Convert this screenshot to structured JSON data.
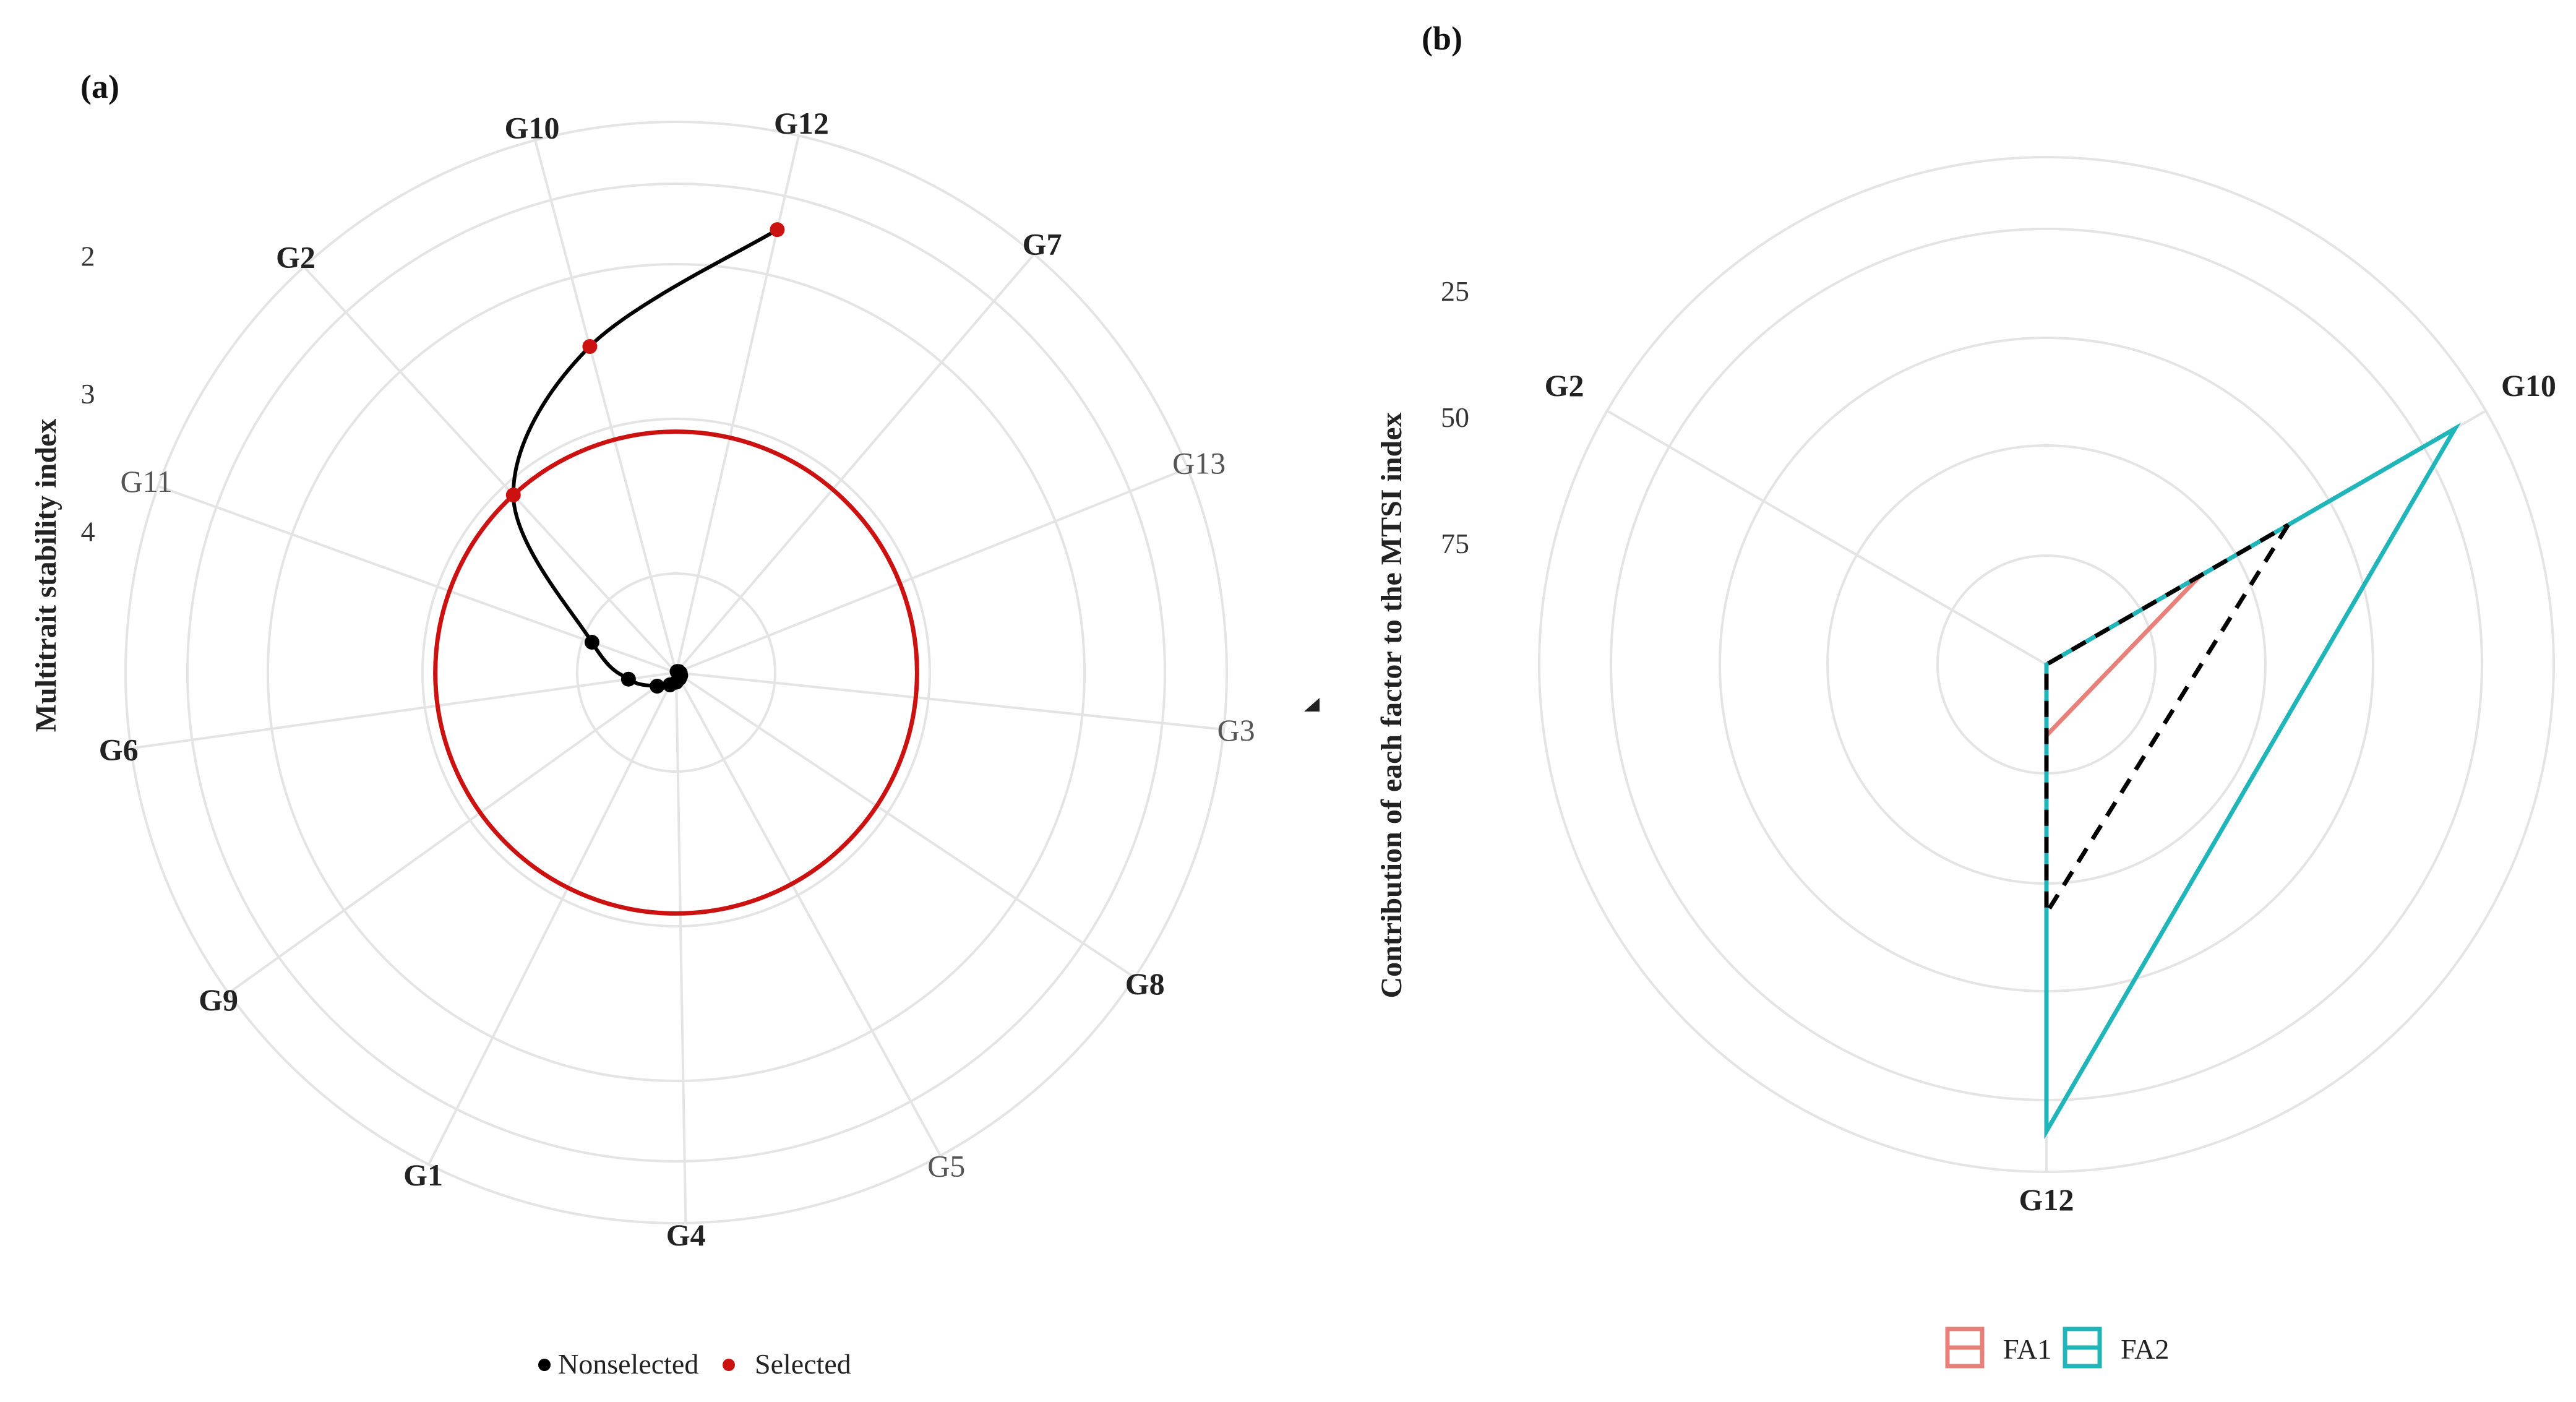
{
  "chart_data": [
    {
      "panel": "(a)",
      "type": "radar",
      "ylabel": "Multitrait stability index",
      "r_ticks": [
        "2",
        "3",
        "4"
      ],
      "r_tick_values": [
        2,
        3,
        4
      ],
      "r_axis": "reversed",
      "categories": [
        "G12",
        "G7",
        "G13",
        "G3",
        "G8",
        "G5",
        "G4",
        "G1",
        "G9",
        "G6",
        "G11",
        "G2",
        "G10"
      ],
      "light_categories": [
        "G13",
        "G3",
        "G5",
        "G11"
      ],
      "points": [
        {
          "genotype": "G12",
          "mtsi": 1.7,
          "group": "Selected"
        },
        {
          "genotype": "G10",
          "mtsi": 2.55,
          "group": "Selected"
        },
        {
          "genotype": "G2",
          "mtsi": 3.25,
          "group": "Selected"
        },
        {
          "genotype": "G11",
          "mtsi": 4.35,
          "group": "Nonselected"
        },
        {
          "genotype": "G6",
          "mtsi": 4.65,
          "group": "Nonselected"
        },
        {
          "genotype": "G9",
          "mtsi": 4.83,
          "group": "Nonselected"
        },
        {
          "genotype": "G1",
          "mtsi": 4.9,
          "group": "Nonselected"
        },
        {
          "genotype": "G4",
          "mtsi": 4.93,
          "group": "Nonselected"
        },
        {
          "genotype": "G5",
          "mtsi": 4.95,
          "group": "Nonselected"
        },
        {
          "genotype": "G8",
          "mtsi": 4.96,
          "group": "Nonselected"
        },
        {
          "genotype": "G3",
          "mtsi": 4.97,
          "group": "Nonselected"
        },
        {
          "genotype": "G13",
          "mtsi": 4.98,
          "group": "Nonselected"
        },
        {
          "genotype": "G7",
          "mtsi": 4.99,
          "group": "Nonselected"
        }
      ],
      "cutpoint_mtsi": 3.25,
      "legend": [
        {
          "label": "Nonselected",
          "color": "#000000"
        },
        {
          "label": "Selected",
          "color": "#cc1111"
        }
      ]
    },
    {
      "panel": "(b)",
      "type": "radar",
      "ylabel": "Contribution of each factor to the MTSI index",
      "r_ticks": [
        "25",
        "50",
        "75"
      ],
      "r_tick_values": [
        25,
        50,
        75
      ],
      "r_axis": "reversed",
      "categories": [
        "G10",
        "G12",
        "G2"
      ],
      "series": [
        {
          "name": "FA1",
          "color": "#e8807a",
          "values": [
            65,
            86,
            100
          ]
        },
        {
          "name": "FA2",
          "color": "#20b5b8",
          "values": [
            7,
            8,
            100
          ]
        },
        {
          "name": "",
          "style": "dashed",
          "color": "#000000",
          "values": [
            45,
            51,
            100
          ]
        }
      ],
      "legend": [
        {
          "label": "FA1",
          "color": "#e8807a"
        },
        {
          "label": "FA2",
          "color": "#20b5b8"
        }
      ]
    }
  ]
}
